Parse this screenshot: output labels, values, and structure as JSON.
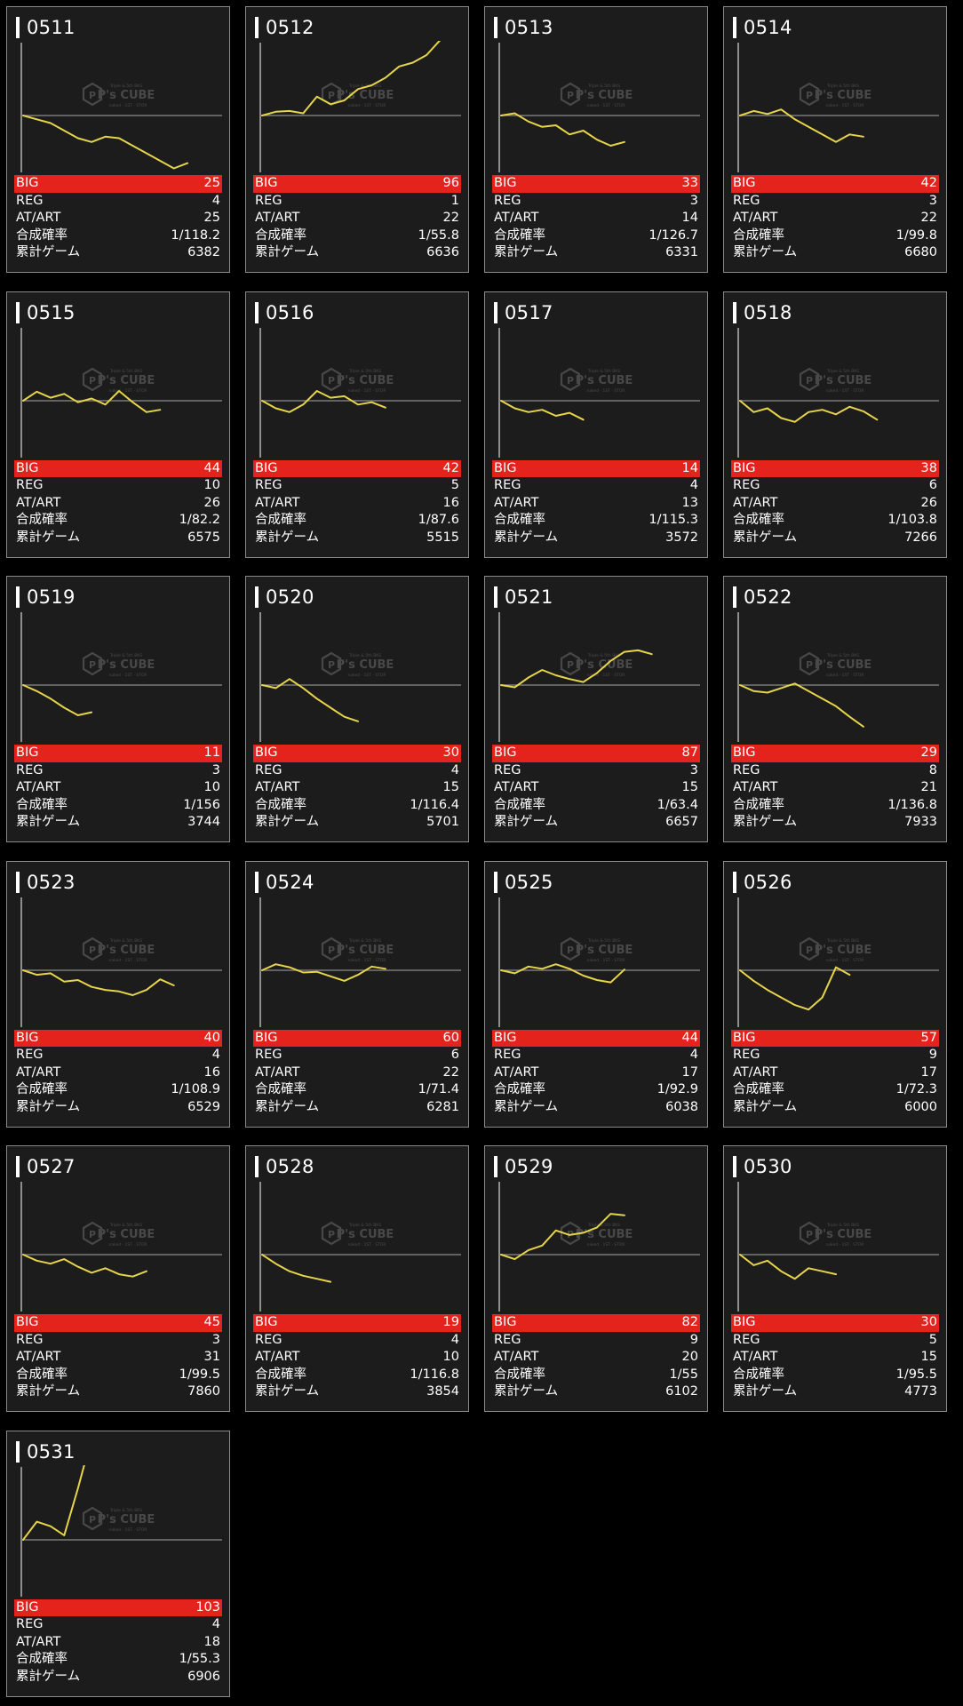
{
  "labels": {
    "big": "BIG",
    "reg": "REG",
    "at": "AT/ART",
    "prob": "合成確率",
    "games": "累計ゲーム"
  },
  "watermark": {
    "tag": "Triple & 5th BKS",
    "name": "P's CUBE",
    "sub": "naked · 1ST · STOR"
  },
  "colors": {
    "background": "#000000",
    "card": "#1c1c1c",
    "card_border": "#8a8a8a",
    "big_bar": "#e3231c",
    "line": "#e6d44a",
    "baseline": "#7a7a7a",
    "axis": "#cccccc"
  },
  "days": [
    {
      "date": "0511",
      "big": "25",
      "reg": "4",
      "at": "25",
      "prob": "1/118.2",
      "games": "6382",
      "chart_data": {
        "type": "line",
        "trend": [
          0,
          -0.5,
          -1,
          -2,
          -3,
          -3.5,
          -2.8,
          -3,
          -4,
          -5,
          -6,
          -7,
          -6.3
        ]
      }
    },
    {
      "date": "0512",
      "big": "96",
      "reg": "1",
      "at": "22",
      "prob": "1/55.8",
      "games": "6636",
      "chart_data": {
        "type": "line",
        "trend": [
          0,
          0.5,
          0.6,
          0.3,
          2.5,
          1.5,
          2,
          3.5,
          4,
          5,
          6.5,
          7,
          8,
          10
        ]
      }
    },
    {
      "date": "0513",
      "big": "33",
      "reg": "3",
      "at": "14",
      "prob": "1/126.7",
      "games": "6331",
      "chart_data": {
        "type": "line",
        "trend": [
          0,
          0.3,
          -0.8,
          -1.5,
          -1.3,
          -2.5,
          -2,
          -3.2,
          -4,
          -3.5
        ]
      }
    },
    {
      "date": "0514",
      "big": "42",
      "reg": "3",
      "at": "22",
      "prob": "1/99.8",
      "games": "6680",
      "chart_data": {
        "type": "line",
        "trend": [
          0,
          0.6,
          0.2,
          0.8,
          -0.5,
          -1.5,
          -2.5,
          -3.5,
          -2.5,
          -2.8
        ]
      }
    },
    {
      "date": "0515",
      "big": "44",
      "reg": "10",
      "at": "26",
      "prob": "1/82.2",
      "games": "6575",
      "chart_data": {
        "type": "line",
        "trend": [
          0,
          1.2,
          0.4,
          0.9,
          -0.2,
          0.3,
          -0.5,
          1.3,
          -0.2,
          -1.5,
          -1.2
        ]
      }
    },
    {
      "date": "0516",
      "big": "42",
      "reg": "5",
      "at": "16",
      "prob": "1/87.6",
      "games": "5515",
      "chart_data": {
        "type": "line",
        "trend": [
          0,
          -1,
          -1.5,
          -0.5,
          1.3,
          0.4,
          0.6,
          -0.5,
          -0.2,
          -0.9
        ]
      }
    },
    {
      "date": "0517",
      "big": "14",
      "reg": "4",
      "at": "13",
      "prob": "1/115.3",
      "games": "3572",
      "chart_data": {
        "type": "line",
        "trend": [
          0,
          -1,
          -1.5,
          -1.2,
          -2,
          -1.6,
          -2.5
        ]
      }
    },
    {
      "date": "0518",
      "big": "38",
      "reg": "6",
      "at": "26",
      "prob": "1/103.8",
      "games": "7266",
      "chart_data": {
        "type": "line",
        "trend": [
          0,
          -1.5,
          -1,
          -2.3,
          -2.8,
          -1.5,
          -1.2,
          -1.8,
          -0.8,
          -1.4,
          -2.5
        ]
      }
    },
    {
      "date": "0519",
      "big": "11",
      "reg": "3",
      "at": "10",
      "prob": "1/156",
      "games": "3744",
      "chart_data": {
        "type": "line",
        "trend": [
          0,
          -0.8,
          -1.8,
          -3,
          -4,
          -3.6
        ]
      }
    },
    {
      "date": "0520",
      "big": "30",
      "reg": "4",
      "at": "15",
      "prob": "1/116.4",
      "games": "5701",
      "chart_data": {
        "type": "line",
        "trend": [
          0,
          -0.4,
          0.8,
          -0.4,
          -1.8,
          -3,
          -4.2,
          -4.8
        ]
      }
    },
    {
      "date": "0521",
      "big": "87",
      "reg": "3",
      "at": "15",
      "prob": "1/63.4",
      "games": "6657",
      "chart_data": {
        "type": "line",
        "trend": [
          0,
          -0.3,
          1,
          2,
          1.3,
          0.8,
          0.4,
          1.6,
          3.2,
          4.4,
          4.6,
          4.1
        ]
      }
    },
    {
      "date": "0522",
      "big": "29",
      "reg": "8",
      "at": "21",
      "prob": "1/136.8",
      "games": "7933",
      "chart_data": {
        "type": "line",
        "trend": [
          0,
          -0.8,
          -1,
          -0.4,
          0.2,
          -0.8,
          -1.8,
          -2.8,
          -4.2,
          -5.5
        ]
      }
    },
    {
      "date": "0523",
      "big": "40",
      "reg": "4",
      "at": "16",
      "prob": "1/108.9",
      "games": "6529",
      "chart_data": {
        "type": "line",
        "trend": [
          0,
          -0.6,
          -0.4,
          -1.5,
          -1.3,
          -2.2,
          -2.6,
          -2.8,
          -3.3,
          -2.6,
          -1.2,
          -2
        ]
      }
    },
    {
      "date": "0524",
      "big": "60",
      "reg": "6",
      "at": "22",
      "prob": "1/71.4",
      "games": "6281",
      "chart_data": {
        "type": "line",
        "trend": [
          0,
          0.8,
          0.4,
          -0.3,
          -0.2,
          -0.8,
          -1.4,
          -0.6,
          0.5,
          0.2
        ]
      }
    },
    {
      "date": "0525",
      "big": "44",
      "reg": "4",
      "at": "17",
      "prob": "1/92.9",
      "games": "6038",
      "chart_data": {
        "type": "line",
        "trend": [
          0,
          -0.4,
          0.5,
          0.2,
          0.8,
          0.2,
          -0.7,
          -1.3,
          -1.6,
          0.1
        ]
      }
    },
    {
      "date": "0526",
      "big": "57",
      "reg": "9",
      "at": "17",
      "prob": "1/72.3",
      "games": "6000",
      "chart_data": {
        "type": "line",
        "trend": [
          0,
          -1.4,
          -2.6,
          -3.6,
          -4.6,
          -5.2,
          -3.6,
          0.4,
          -0.6
        ]
      }
    },
    {
      "date": "0527",
      "big": "45",
      "reg": "3",
      "at": "31",
      "prob": "1/99.5",
      "games": "7860",
      "chart_data": {
        "type": "line",
        "trend": [
          0,
          -0.8,
          -1.2,
          -0.6,
          -1.6,
          -2.4,
          -1.8,
          -2.6,
          -2.9,
          -2.2
        ]
      }
    },
    {
      "date": "0528",
      "big": "19",
      "reg": "4",
      "at": "10",
      "prob": "1/116.8",
      "games": "3854",
      "chart_data": {
        "type": "line",
        "trend": [
          0,
          -1.2,
          -2.2,
          -2.8,
          -3.2,
          -3.6
        ]
      }
    },
    {
      "date": "0529",
      "big": "82",
      "reg": "9",
      "at": "20",
      "prob": "1/55",
      "games": "6102",
      "chart_data": {
        "type": "line",
        "trend": [
          0,
          -0.6,
          0.6,
          1.2,
          3.2,
          2.6,
          2.9,
          3.6,
          5.4,
          5.2
        ]
      }
    },
    {
      "date": "0530",
      "big": "30",
      "reg": "5",
      "at": "15",
      "prob": "1/95.5",
      "games": "4773",
      "chart_data": {
        "type": "line",
        "trend": [
          0,
          -1.4,
          -0.8,
          -2.2,
          -3.2,
          -1.8,
          -2.2,
          -2.6
        ]
      }
    },
    {
      "date": "0531",
      "big": "103",
      "reg": "4",
      "at": "18",
      "prob": "1/55.3",
      "games": "6906",
      "chart_data": {
        "type": "line",
        "trend": [
          0,
          2.4,
          1.8,
          0.6,
          6.8,
          13.5,
          13,
          12.2,
          11.6,
          10.9,
          10.4
        ]
      }
    }
  ]
}
